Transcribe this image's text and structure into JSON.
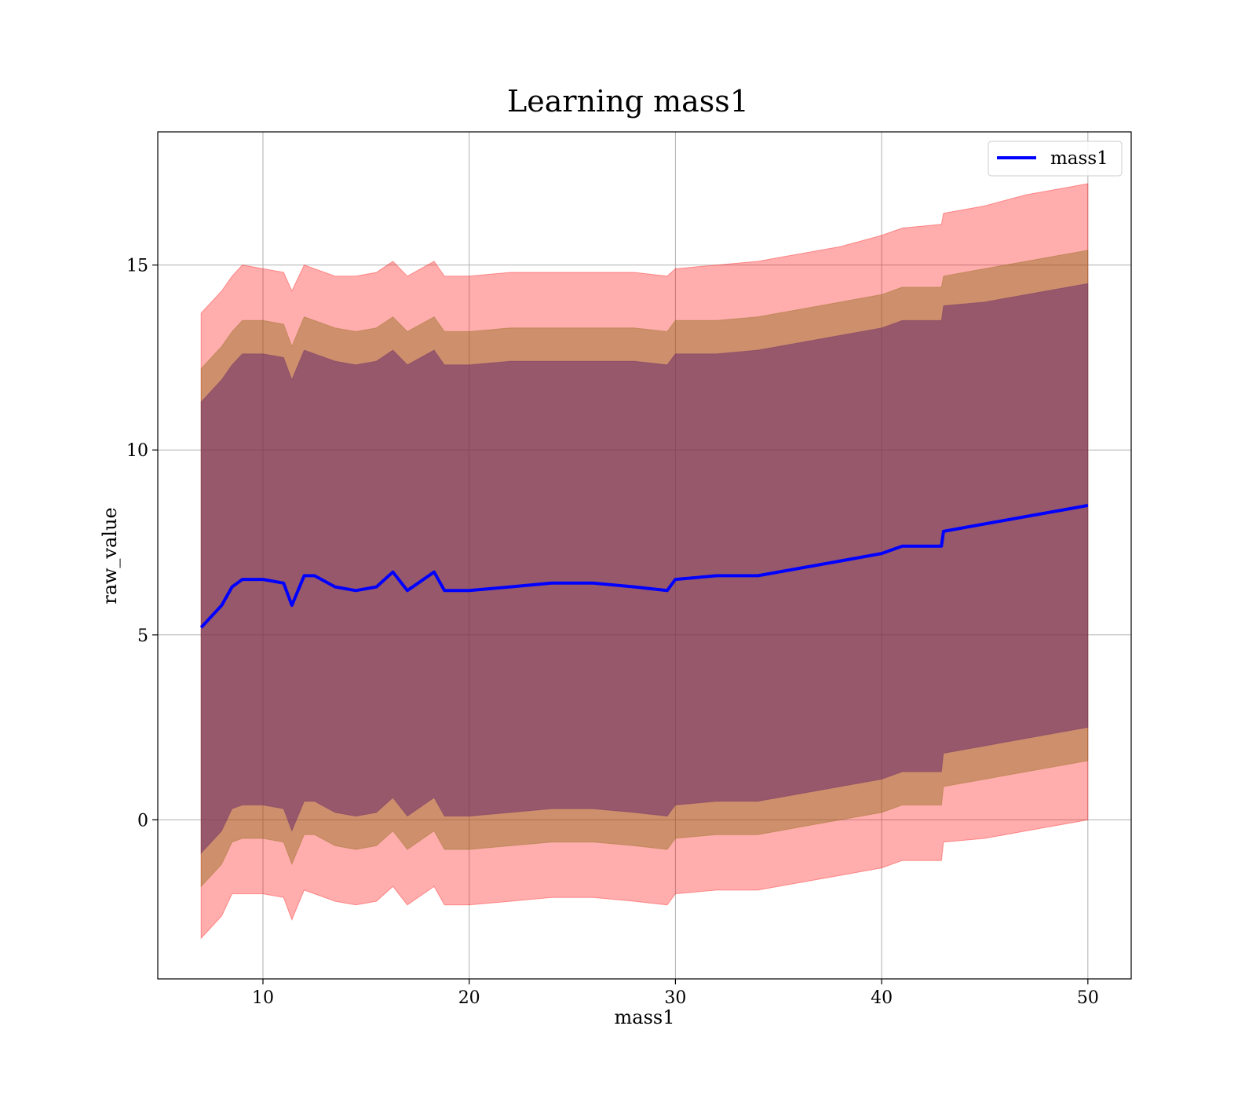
{
  "chart_data": {
    "type": "line",
    "title": "Learning mass1",
    "xlabel": "mass1",
    "ylabel": "raw_value",
    "xlim": [
      4.9,
      52.1
    ],
    "ylim": [
      -4.3,
      18.6
    ],
    "xticks": [
      10,
      20,
      30,
      40,
      50
    ],
    "yticks": [
      0,
      5,
      10,
      15
    ],
    "grid": true,
    "legend": {
      "position": "top-right",
      "entries": [
        "mass1"
      ]
    },
    "colors": {
      "line": "#0000ff",
      "band_outer": "#ff0000",
      "band_mid": "#8b6914",
      "band_inner": "#6b2a6b"
    },
    "x": [
      7.0,
      7.5,
      8.0,
      8.5,
      9.0,
      10.0,
      11.0,
      11.4,
      12.0,
      12.5,
      13.5,
      14.5,
      15.5,
      16.3,
      17.0,
      18.3,
      18.8,
      20.0,
      22.0,
      24.0,
      26.0,
      28.0,
      29.6,
      30.0,
      32.0,
      34.0,
      36.0,
      38.0,
      40.0,
      41.0,
      42.9,
      43.0,
      45.0,
      47.0,
      49.0,
      50.0
    ],
    "series": [
      {
        "name": "mass1",
        "role": "mean",
        "values": [
          5.2,
          5.5,
          5.8,
          6.3,
          6.5,
          6.5,
          6.4,
          5.8,
          6.6,
          6.6,
          6.3,
          6.2,
          6.3,
          6.7,
          6.2,
          6.7,
          6.2,
          6.2,
          6.3,
          6.4,
          6.4,
          6.3,
          6.2,
          6.5,
          6.6,
          6.6,
          6.8,
          7.0,
          7.2,
          7.4,
          7.4,
          7.8,
          8.0,
          8.2,
          8.4,
          8.5
        ]
      },
      {
        "role": "band_outer_upper",
        "values": [
          13.7,
          14.0,
          14.3,
          14.7,
          15.0,
          14.9,
          14.8,
          14.3,
          15.0,
          14.9,
          14.7,
          14.7,
          14.8,
          15.1,
          14.7,
          15.1,
          14.7,
          14.7,
          14.8,
          14.8,
          14.8,
          14.8,
          14.7,
          14.9,
          15.0,
          15.1,
          15.3,
          15.5,
          15.8,
          16.0,
          16.1,
          16.4,
          16.6,
          16.9,
          17.1,
          17.2
        ]
      },
      {
        "role": "band_outer_lower",
        "values": [
          -3.2,
          -2.9,
          -2.6,
          -2.0,
          -2.0,
          -2.0,
          -2.1,
          -2.7,
          -1.9,
          -2.0,
          -2.2,
          -2.3,
          -2.2,
          -1.8,
          -2.3,
          -1.8,
          -2.3,
          -2.3,
          -2.2,
          -2.1,
          -2.1,
          -2.2,
          -2.3,
          -2.0,
          -1.9,
          -1.9,
          -1.7,
          -1.5,
          -1.3,
          -1.1,
          -1.1,
          -0.6,
          -0.5,
          -0.3,
          -0.1,
          0.0
        ]
      },
      {
        "role": "band_mid_upper",
        "values": [
          12.2,
          12.5,
          12.8,
          13.2,
          13.5,
          13.5,
          13.4,
          12.8,
          13.6,
          13.5,
          13.3,
          13.2,
          13.3,
          13.6,
          13.2,
          13.6,
          13.2,
          13.2,
          13.3,
          13.3,
          13.3,
          13.3,
          13.2,
          13.5,
          13.5,
          13.6,
          13.8,
          14.0,
          14.2,
          14.4,
          14.4,
          14.7,
          14.9,
          15.1,
          15.3,
          15.4
        ]
      },
      {
        "role": "band_mid_lower",
        "values": [
          -1.8,
          -1.5,
          -1.2,
          -0.6,
          -0.5,
          -0.5,
          -0.6,
          -1.2,
          -0.4,
          -0.4,
          -0.7,
          -0.8,
          -0.7,
          -0.3,
          -0.8,
          -0.3,
          -0.8,
          -0.8,
          -0.7,
          -0.6,
          -0.6,
          -0.7,
          -0.8,
          -0.5,
          -0.4,
          -0.4,
          -0.2,
          0.0,
          0.2,
          0.4,
          0.4,
          0.9,
          1.1,
          1.3,
          1.5,
          1.6
        ]
      },
      {
        "role": "band_inner_upper",
        "values": [
          11.3,
          11.6,
          11.9,
          12.3,
          12.6,
          12.6,
          12.5,
          11.9,
          12.7,
          12.6,
          12.4,
          12.3,
          12.4,
          12.7,
          12.3,
          12.7,
          12.3,
          12.3,
          12.4,
          12.4,
          12.4,
          12.4,
          12.3,
          12.6,
          12.6,
          12.7,
          12.9,
          13.1,
          13.3,
          13.5,
          13.5,
          13.9,
          14.0,
          14.2,
          14.4,
          14.5
        ]
      },
      {
        "role": "band_inner_lower",
        "values": [
          -0.9,
          -0.6,
          -0.3,
          0.3,
          0.4,
          0.4,
          0.3,
          -0.3,
          0.5,
          0.5,
          0.2,
          0.1,
          0.2,
          0.6,
          0.1,
          0.6,
          0.1,
          0.1,
          0.2,
          0.3,
          0.3,
          0.2,
          0.1,
          0.4,
          0.5,
          0.5,
          0.7,
          0.9,
          1.1,
          1.3,
          1.3,
          1.8,
          2.0,
          2.2,
          2.4,
          2.5
        ]
      }
    ]
  }
}
